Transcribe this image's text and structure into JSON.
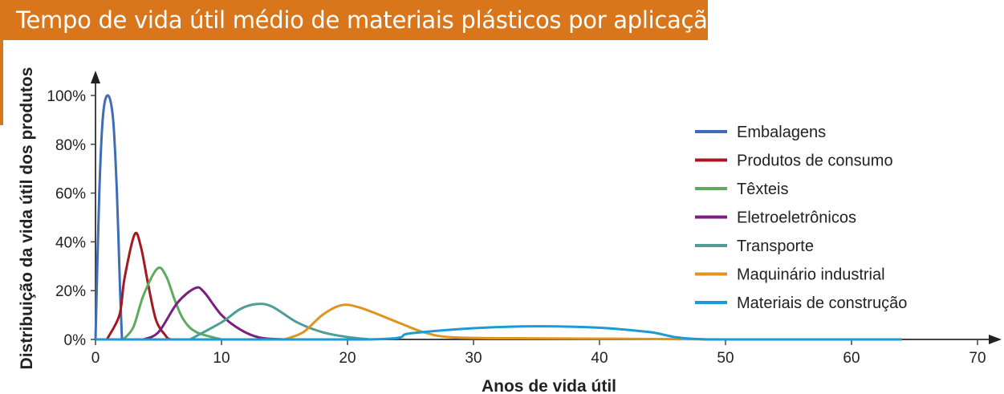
{
  "chart_data": {
    "type": "line",
    "title": "Tempo de vida útil médio de materiais plásticos por aplicação",
    "xlabel": "Anos de vida útil",
    "ylabel": "Distribuição da vida útil dos produtos",
    "xlim": [
      0,
      70
    ],
    "ylim": [
      0,
      100
    ],
    "xticks": [
      "0",
      "10",
      "20",
      "30",
      "40",
      "50",
      "60",
      "70"
    ],
    "xtick_values": [
      0,
      10,
      20,
      30,
      40,
      50,
      60,
      70
    ],
    "yticks": [
      "0%",
      "20%",
      "40%",
      "60%",
      "80%",
      "100%"
    ],
    "ytick_values": [
      0,
      20,
      40,
      60,
      80,
      100
    ],
    "grid": false,
    "legend_position": "right",
    "series": [
      {
        "name": "Embalagens",
        "color": "#3E6DB5",
        "points": [
          [
            0,
            0
          ],
          [
            0.3,
            60
          ],
          [
            0.6,
            92
          ],
          [
            1,
            100
          ],
          [
            1.4,
            90
          ],
          [
            1.7,
            60
          ],
          [
            1.95,
            20
          ],
          [
            2.1,
            0
          ]
        ]
      },
      {
        "name": "Produtos de consumo",
        "color": "#A3191F",
        "points": [
          [
            0.9,
            0
          ],
          [
            1.9,
            10
          ],
          [
            2.3,
            25
          ],
          [
            3.1,
            43
          ],
          [
            3.6,
            38
          ],
          [
            4.2,
            22
          ],
          [
            4.8,
            8
          ],
          [
            5.5,
            2
          ],
          [
            6,
            0
          ],
          [
            7.5,
            0
          ]
        ]
      },
      {
        "name": "Têxteis",
        "color": "#5FAA5F",
        "points": [
          [
            2.2,
            0
          ],
          [
            3,
            5
          ],
          [
            3.8,
            18
          ],
          [
            4.9,
            29
          ],
          [
            5.6,
            26
          ],
          [
            6.3,
            16
          ],
          [
            7,
            8
          ],
          [
            8,
            3
          ],
          [
            10,
            0
          ]
        ]
      },
      {
        "name": "Eletroeletrônicos",
        "color": "#7B1F7E",
        "points": [
          [
            3.8,
            0
          ],
          [
            5,
            3
          ],
          [
            6.5,
            15
          ],
          [
            7.9,
            21
          ],
          [
            8.6,
            19.5
          ],
          [
            10,
            10
          ],
          [
            11.5,
            4
          ],
          [
            13,
            0.8
          ],
          [
            15,
            0
          ],
          [
            17,
            0
          ]
        ]
      },
      {
        "name": "Transporte",
        "color": "#4E9E96",
        "points": [
          [
            7.5,
            0
          ],
          [
            10,
            7
          ],
          [
            11.5,
            12.5
          ],
          [
            12.8,
            14.5
          ],
          [
            14,
            13.5
          ],
          [
            16,
            7
          ],
          [
            18,
            3
          ],
          [
            20,
            1
          ],
          [
            21.8,
            0
          ]
        ]
      },
      {
        "name": "Maquinário industrial",
        "color": "#E0931D",
        "points": [
          [
            15,
            0
          ],
          [
            16.5,
            3
          ],
          [
            18,
            10
          ],
          [
            19.5,
            14
          ],
          [
            21,
            13
          ],
          [
            24,
            7
          ],
          [
            26,
            3
          ],
          [
            28,
            1
          ],
          [
            32,
            0.5
          ],
          [
            40,
            0.3
          ],
          [
            50,
            0
          ]
        ]
      },
      {
        "name": "Materiais de construção",
        "color": "#1A9AD6",
        "points": [
          [
            0,
            0
          ],
          [
            21.6,
            0
          ],
          [
            25,
            2.5
          ],
          [
            30,
            4.6
          ],
          [
            35,
            5.4
          ],
          [
            40,
            4.8
          ],
          [
            44,
            3
          ],
          [
            48.5,
            0
          ],
          [
            64,
            0
          ]
        ]
      }
    ]
  }
}
